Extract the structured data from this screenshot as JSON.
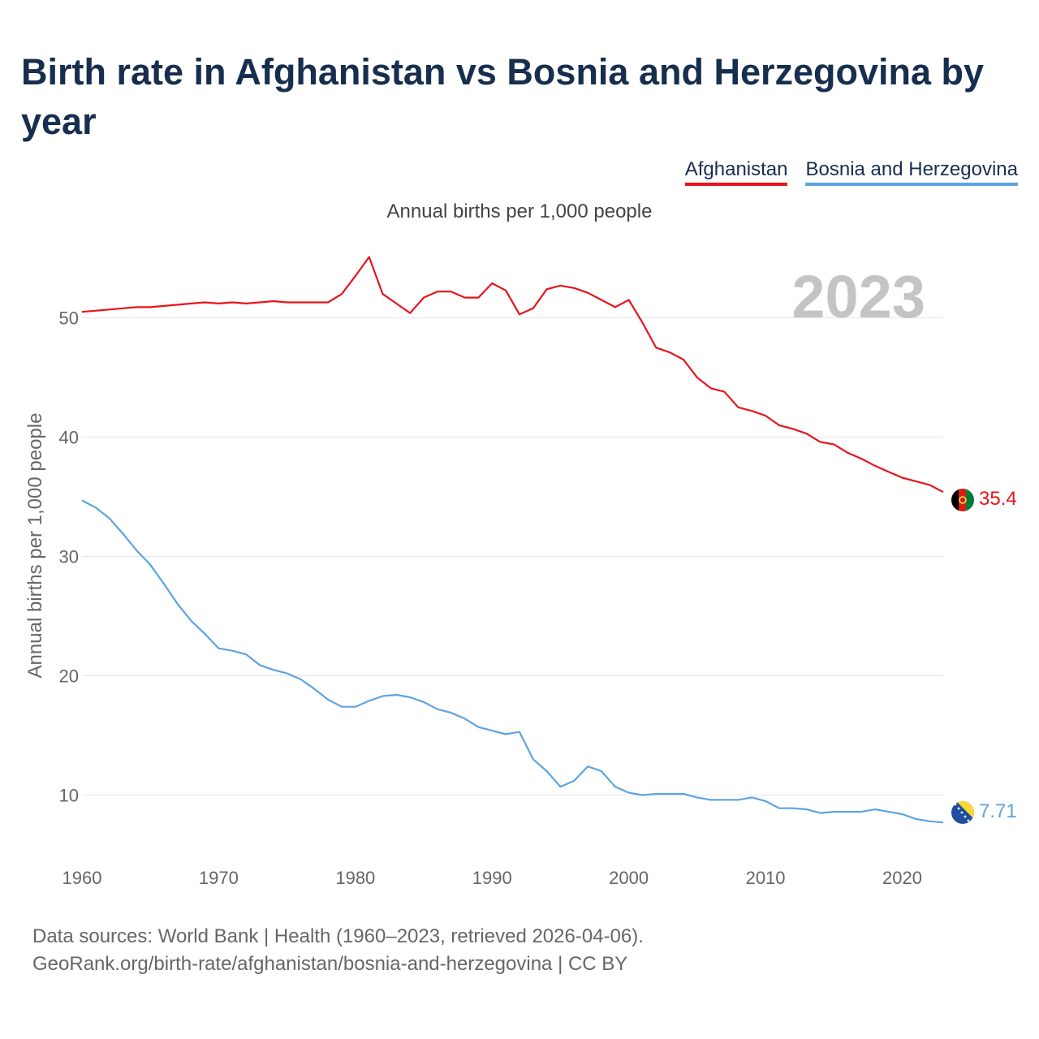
{
  "title": "Birth rate in Afghanistan vs Bosnia and Herzegovina by year",
  "subtitle": "Annual births per 1,000 people",
  "legend": [
    {
      "label": "Afghanistan",
      "color": "#e8141c"
    },
    {
      "label": "Bosnia and Herzegovina",
      "color": "#5ea3e3"
    }
  ],
  "year_watermark": "2023",
  "source": {
    "line1": "Data sources: World Bank | Health (1960–2023, retrieved 2026-04-06).",
    "line2": "GeoRank.org/birth-rate/afghanistan/bosnia-and-herzegovina | CC BY"
  },
  "chart_data": {
    "type": "line",
    "title": "Birth rate in Afghanistan vs Bosnia and Herzegovina by year",
    "xlabel": "",
    "ylabel": "Annual births per 1,000 people",
    "xlim": [
      1960,
      2023
    ],
    "ylim": [
      5,
      58
    ],
    "x_ticks": [
      1960,
      1970,
      1980,
      1990,
      2000,
      2010,
      2020
    ],
    "y_ticks": [
      10,
      20,
      30,
      40,
      50
    ],
    "grid": true,
    "x": [
      1960,
      1961,
      1962,
      1963,
      1964,
      1965,
      1966,
      1967,
      1968,
      1969,
      1970,
      1971,
      1972,
      1973,
      1974,
      1975,
      1976,
      1977,
      1978,
      1979,
      1980,
      1981,
      1982,
      1983,
      1984,
      1985,
      1986,
      1987,
      1988,
      1989,
      1990,
      1991,
      1992,
      1993,
      1994,
      1995,
      1996,
      1997,
      1998,
      1999,
      2000,
      2001,
      2002,
      2003,
      2004,
      2005,
      2006,
      2007,
      2008,
      2009,
      2010,
      2011,
      2012,
      2013,
      2014,
      2015,
      2016,
      2017,
      2018,
      2019,
      2020,
      2021,
      2022,
      2023
    ],
    "series": [
      {
        "name": "Afghanistan",
        "color": "#e8141c",
        "end_label": "35.4",
        "values": [
          50.5,
          50.6,
          50.7,
          50.8,
          50.9,
          50.9,
          51.0,
          51.1,
          51.2,
          51.3,
          51.2,
          51.3,
          51.2,
          51.3,
          51.4,
          51.3,
          51.3,
          51.3,
          51.3,
          52.0,
          53.5,
          55.1,
          52.0,
          51.2,
          50.4,
          51.7,
          52.2,
          52.2,
          51.7,
          51.7,
          52.9,
          52.3,
          50.3,
          50.8,
          52.4,
          52.7,
          52.5,
          52.1,
          51.5,
          50.9,
          51.5,
          49.6,
          47.5,
          47.1,
          46.5,
          45.0,
          44.1,
          43.8,
          42.5,
          42.2,
          41.8,
          41.0,
          40.7,
          40.3,
          39.6,
          39.4,
          38.7,
          38.2,
          37.6,
          37.1,
          36.6,
          36.3,
          36.0,
          35.4
        ]
      },
      {
        "name": "Bosnia and Herzegovina",
        "color": "#5ea3e3",
        "end_label": "7.71",
        "values": [
          34.7,
          34.1,
          33.2,
          31.9,
          30.5,
          29.3,
          27.7,
          26.0,
          24.6,
          23.5,
          22.3,
          22.1,
          21.8,
          20.9,
          20.5,
          20.2,
          19.7,
          18.9,
          18.0,
          17.4,
          17.4,
          17.9,
          18.3,
          18.4,
          18.2,
          17.8,
          17.2,
          16.9,
          16.4,
          15.7,
          15.4,
          15.1,
          15.3,
          13.0,
          12.0,
          10.7,
          11.2,
          12.4,
          12.0,
          10.7,
          10.2,
          10.0,
          10.1,
          10.1,
          10.1,
          9.8,
          9.6,
          9.6,
          9.6,
          9.8,
          9.5,
          8.9,
          8.9,
          8.8,
          8.5,
          8.6,
          8.6,
          8.6,
          8.8,
          8.6,
          8.4,
          8.0,
          7.8,
          7.71
        ]
      }
    ]
  }
}
